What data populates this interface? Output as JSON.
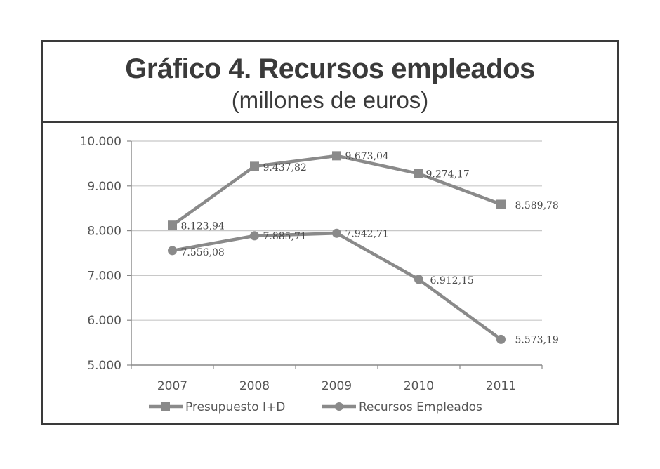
{
  "header": {
    "title": "Gráfico 4. Recursos empleados",
    "subtitle": "(millones de euros)"
  },
  "chart_data": {
    "type": "line",
    "title": "Gráfico 4. Recursos empleados",
    "subtitle": "(millones de euros)",
    "xlabel": "",
    "ylabel": "",
    "x": [
      "2007",
      "2008",
      "2009",
      "2010",
      "2011"
    ],
    "ylim": [
      5000,
      10000
    ],
    "yticks": [
      {
        "value": 5000,
        "label": "5.000"
      },
      {
        "value": 6000,
        "label": "6.000"
      },
      {
        "value": 7000,
        "label": "7.000"
      },
      {
        "value": 8000,
        "label": "8.000"
      },
      {
        "value": 9000,
        "label": "9.000"
      },
      {
        "value": 10000,
        "label": "10.000"
      }
    ],
    "grid": true,
    "legend_position": "bottom",
    "series": [
      {
        "name": "Presupuesto I+D",
        "marker": "square",
        "color": "#8a8a8a",
        "values": [
          8123.94,
          9437.82,
          9673.04,
          9274.17,
          8589.78
        ],
        "labels": [
          "8.123,94",
          "9.437,82",
          "9.673,04",
          "9.274,17",
          "8.589,78"
        ]
      },
      {
        "name": "Recursos Empleados",
        "marker": "circle",
        "color": "#8a8a8a",
        "values": [
          7556.08,
          7885.71,
          7942.71,
          6912.15,
          5573.19
        ],
        "labels": [
          "7.556,08",
          "7.885,71",
          "7.942,71",
          "6.912,15",
          "5.573,19"
        ]
      }
    ]
  }
}
